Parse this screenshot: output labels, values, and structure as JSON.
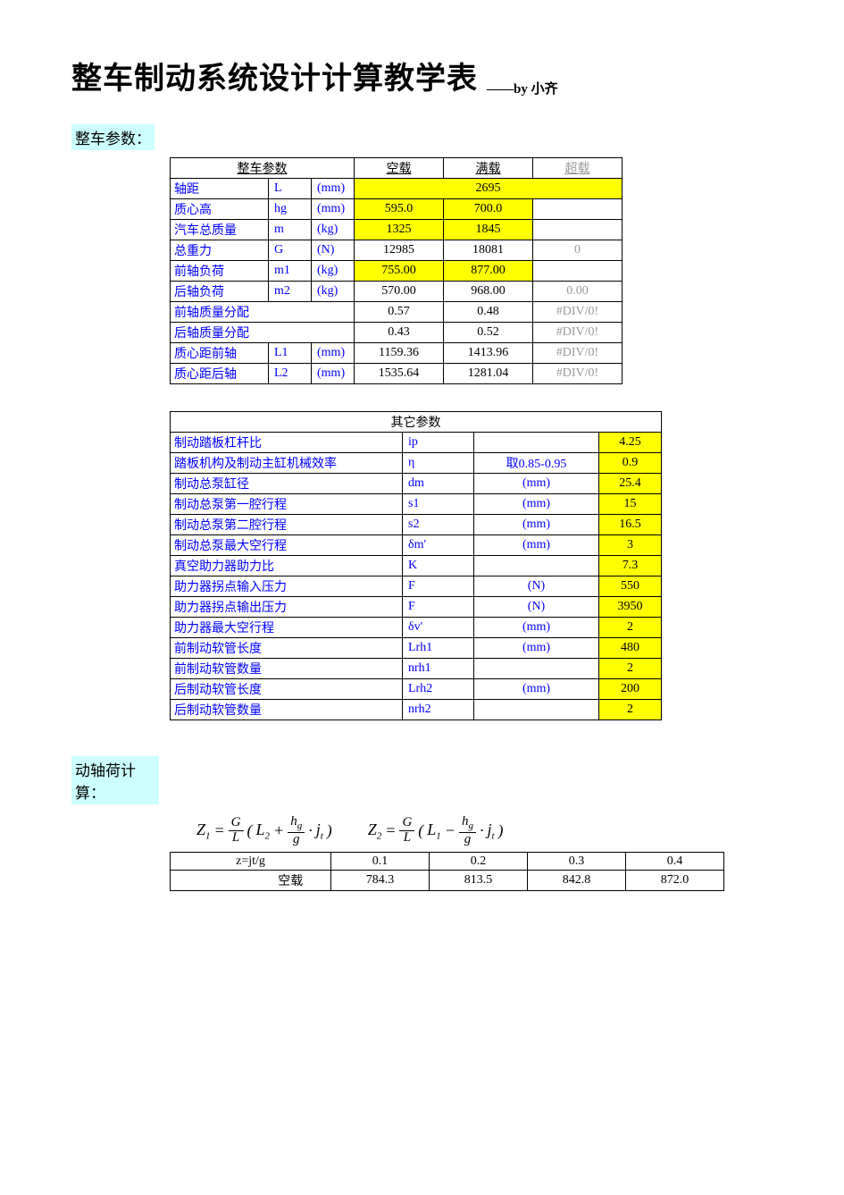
{
  "title": "整车制动系统设计计算教学表",
  "byline_prefix": "——by",
  "byline_name": "小齐",
  "sections": {
    "vehicle_params_label": "整车参数：",
    "dyn_load_label": "动轴荷计算："
  },
  "table1": {
    "header": {
      "params": "整车参数",
      "empty": "空载",
      "full": "满载",
      "over": "超载"
    },
    "rows": [
      {
        "name": "轴距",
        "sym": "L",
        "unit": "(mm)",
        "span": "2695",
        "span_hl": true
      },
      {
        "name": "质心高",
        "sym": "hg",
        "unit": "(mm)",
        "empty": "595.0",
        "full": "700.0",
        "empty_hl": true,
        "full_hl": true,
        "over": ""
      },
      {
        "name": "汽车总质量",
        "sym": "m",
        "unit": "(kg)",
        "empty": "1325",
        "full": "1845",
        "empty_hl": true,
        "full_hl": true,
        "over": ""
      },
      {
        "name": "总重力",
        "sym": "G",
        "unit": "(N)",
        "empty": "12985",
        "full": "18081",
        "over": "0",
        "over_gray": true
      },
      {
        "name": "前轴负荷",
        "sym": "m1",
        "unit": "(kg)",
        "empty": "755.00",
        "full": "877.00",
        "empty_hl": true,
        "full_hl": true,
        "over": ""
      },
      {
        "name": "后轴负荷",
        "sym": "m2",
        "unit": "(kg)",
        "empty": "570.00",
        "full": "968.00",
        "over": "0.00",
        "over_gray": true
      },
      {
        "name": "前轴质量分配",
        "sym": "",
        "unit": "",
        "merge_name": true,
        "empty": "0.57",
        "full": "0.48",
        "over": "#DIV/0!",
        "over_gray": true
      },
      {
        "name": "后轴质量分配",
        "sym": "",
        "unit": "",
        "merge_name": true,
        "empty": "0.43",
        "full": "0.52",
        "over": "#DIV/0!",
        "over_gray": true
      },
      {
        "name": "质心距前轴",
        "sym": "L1",
        "unit": "(mm)",
        "empty": "1159.36",
        "full": "1413.96",
        "over": "#DIV/0!",
        "over_gray": true
      },
      {
        "name": "质心距后轴",
        "sym": "L2",
        "unit": "(mm)",
        "empty": "1535.64",
        "full": "1281.04",
        "over": "#DIV/0!",
        "over_gray": true
      }
    ]
  },
  "table2": {
    "header": "其它参数",
    "rows": [
      {
        "name": "制动踏板杠杆比",
        "sym": "ip",
        "note": "",
        "val": "4.25"
      },
      {
        "name": "踏板机构及制动主缸机械效率",
        "sym": "η",
        "note": "取0.85-0.95",
        "val": "0.9"
      },
      {
        "name": "制动总泵缸径",
        "sym": "dm",
        "note": "(mm)",
        "val": "25.4"
      },
      {
        "name": "制动总泵第一腔行程",
        "sym": "s1",
        "note": "(mm)",
        "val": "15"
      },
      {
        "name": "制动总泵第二腔行程",
        "sym": "s2",
        "note": "(mm)",
        "val": "16.5"
      },
      {
        "name": "制动总泵最大空行程",
        "sym": "δm'",
        "note": "(mm)",
        "val": "3"
      },
      {
        "name": "真空助力器助力比",
        "sym": "K",
        "note": "",
        "val": "7.3"
      },
      {
        "name": "助力器拐点输入压力",
        "sym": "F",
        "note": "(N)",
        "val": "550"
      },
      {
        "name": "助力器拐点输出压力",
        "sym": "F",
        "note": "(N)",
        "val": "3950"
      },
      {
        "name": "助力器最大空行程",
        "sym": "δv'",
        "note": "(mm)",
        "val": "2"
      },
      {
        "name": "前制动软管长度",
        "sym": "Lrh1",
        "note": "(mm)",
        "val": "480"
      },
      {
        "name": "前制动软管数量",
        "sym": "nrh1",
        "note": "",
        "val": "2"
      },
      {
        "name": "后制动软管长度",
        "sym": "Lrh2",
        "note": "(mm)",
        "val": "200"
      },
      {
        "name": "后制动软管数量",
        "sym": "nrh2",
        "note": "",
        "val": "2"
      }
    ]
  },
  "formula": {
    "z1_lhs": "Z",
    "z1_sub": "1",
    "z2_lhs": "Z",
    "z2_sub": "2",
    "eq": "=",
    "G": "G",
    "L": "L",
    "L2": "L",
    "L2sub": "2",
    "L1": "L",
    "L1sub": "1",
    "hg_num": "h",
    "hg_sub": "g",
    "g": "g",
    "jt": "j",
    "jt_sub": "t",
    "lp": "(",
    "rp": ")",
    "plus": "+",
    "minus": "−",
    "dot": "·"
  },
  "table3": {
    "hdr": {
      "z": "z=jt/g",
      "c1": "0.1",
      "c2": "0.2",
      "c3": "0.3",
      "c4": "0.4"
    },
    "row": {
      "lbl": "空载",
      "c1": "784.3",
      "c2": "813.5",
      "c3": "842.8",
      "c4": "872.0"
    }
  },
  "colors": {
    "link_blue": "#0000ff",
    "highlight": "#ffff00",
    "section_bg": "#ccffff",
    "gray": "#999999",
    "border": "#000000",
    "bg": "#ffffff"
  }
}
